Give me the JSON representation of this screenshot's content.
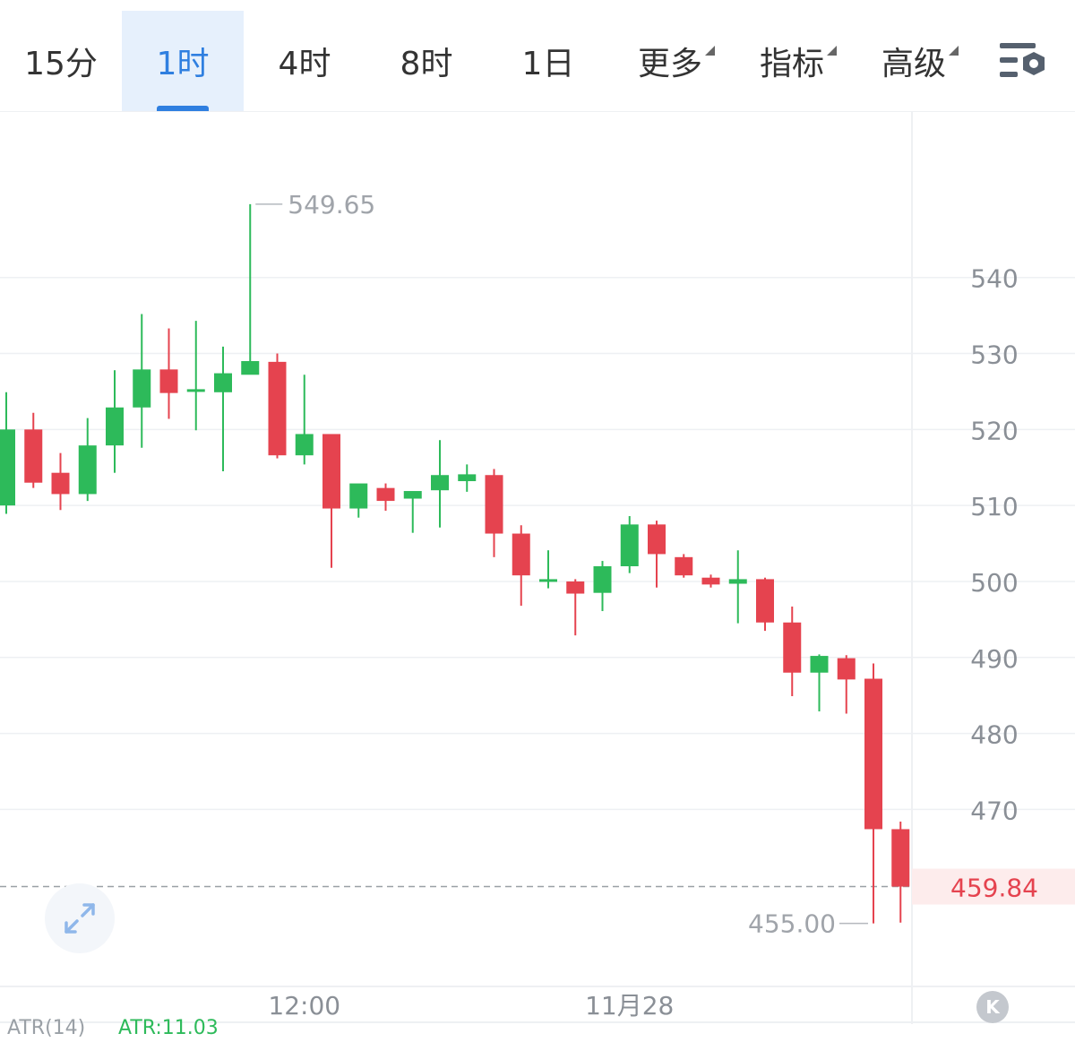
{
  "toolbar": {
    "tabs": [
      {
        "label": "15分",
        "active": false,
        "dropdown": false
      },
      {
        "label": "1时",
        "active": true,
        "dropdown": false
      },
      {
        "label": "4时",
        "active": false,
        "dropdown": false
      },
      {
        "label": "8时",
        "active": false,
        "dropdown": false
      },
      {
        "label": "1日",
        "active": false,
        "dropdown": false
      },
      {
        "label": "更多",
        "active": false,
        "dropdown": true
      },
      {
        "label": "指标",
        "active": false,
        "dropdown": true
      },
      {
        "label": "高级",
        "active": false,
        "dropdown": true
      }
    ],
    "settings_icon": "chart-settings-icon"
  },
  "colors": {
    "up": "#2dba5a",
    "down": "#e5434f",
    "accent": "#2f7fe0",
    "grid": "#eef0f3",
    "axis_text": "#8a8f96",
    "last_price": "#e5434f"
  },
  "chart_data": {
    "type": "candlestick",
    "interval": "1时",
    "x_tick_labels": [
      {
        "label": "12:00",
        "index": 11
      },
      {
        "label": "11月28",
        "index": 23
      }
    ],
    "y_ticks": [
      470,
      480,
      490,
      500,
      510,
      520,
      530,
      540
    ],
    "ylim": [
      446.7,
      561.9
    ],
    "high_annotation": {
      "label": "549.65",
      "value": 549.65,
      "index": 9
    },
    "low_annotation": {
      "label": "455.00",
      "value": 455.0,
      "index": 32
    },
    "last_price": {
      "label": "459.84",
      "value": 459.84
    },
    "candles": [
      {
        "open": 510.0,
        "high": 524.9,
        "low": 508.9,
        "close": 520.0
      },
      {
        "open": 520.0,
        "high": 522.2,
        "low": 512.3,
        "close": 513.0
      },
      {
        "open": 514.3,
        "high": 516.9,
        "low": 509.4,
        "close": 511.5
      },
      {
        "open": 511.5,
        "high": 521.5,
        "low": 510.6,
        "close": 517.9
      },
      {
        "open": 517.9,
        "high": 527.8,
        "low": 514.3,
        "close": 522.9
      },
      {
        "open": 522.9,
        "high": 535.2,
        "low": 517.6,
        "close": 527.9
      },
      {
        "open": 527.9,
        "high": 533.3,
        "low": 521.4,
        "close": 524.8
      },
      {
        "open": 525.0,
        "high": 534.3,
        "low": 519.9,
        "close": 525.3
      },
      {
        "open": 524.9,
        "high": 530.9,
        "low": 514.5,
        "close": 527.4
      },
      {
        "open": 527.2,
        "high": 549.65,
        "low": 527.4,
        "close": 529.0
      },
      {
        "open": 528.9,
        "high": 530.0,
        "low": 516.2,
        "close": 516.6
      },
      {
        "open": 516.6,
        "high": 527.2,
        "low": 515.4,
        "close": 519.4
      },
      {
        "open": 519.4,
        "high": 519.3,
        "low": 501.8,
        "close": 509.6
      },
      {
        "open": 509.6,
        "high": 512.7,
        "low": 508.4,
        "close": 512.9
      },
      {
        "open": 512.3,
        "high": 512.9,
        "low": 509.3,
        "close": 510.6
      },
      {
        "open": 510.9,
        "high": 511.6,
        "low": 506.4,
        "close": 511.9
      },
      {
        "open": 512.0,
        "high": 518.6,
        "low": 507.1,
        "close": 514.0
      },
      {
        "open": 513.2,
        "high": 515.4,
        "low": 511.8,
        "close": 514.1
      },
      {
        "open": 514.0,
        "high": 514.8,
        "low": 503.2,
        "close": 506.3
      },
      {
        "open": 506.3,
        "high": 507.4,
        "low": 496.8,
        "close": 500.8
      },
      {
        "open": 500.3,
        "high": 504.1,
        "low": 499.1,
        "close": 500.3
      },
      {
        "open": 500.0,
        "high": 500.3,
        "low": 492.9,
        "close": 498.4
      },
      {
        "open": 498.5,
        "high": 502.7,
        "low": 496.1,
        "close": 502.0
      },
      {
        "open": 502.0,
        "high": 508.6,
        "low": 501.1,
        "close": 507.5
      },
      {
        "open": 507.5,
        "high": 508.0,
        "low": 499.2,
        "close": 503.6
      },
      {
        "open": 503.2,
        "high": 503.6,
        "low": 500.5,
        "close": 500.8
      },
      {
        "open": 500.5,
        "high": 500.9,
        "low": 499.2,
        "close": 499.6
      },
      {
        "open": 499.7,
        "high": 504.1,
        "low": 494.5,
        "close": 500.3
      },
      {
        "open": 500.3,
        "high": 500.5,
        "low": 493.5,
        "close": 494.6
      },
      {
        "open": 494.6,
        "high": 496.7,
        "low": 484.9,
        "close": 488.0
      },
      {
        "open": 488.0,
        "high": 490.4,
        "low": 482.9,
        "close": 490.2
      },
      {
        "open": 489.9,
        "high": 490.3,
        "low": 482.6,
        "close": 487.1
      },
      {
        "open": 487.2,
        "high": 489.2,
        "low": 455.0,
        "close": 467.4
      },
      {
        "open": 467.4,
        "high": 468.4,
        "low": 455.1,
        "close": 459.84
      }
    ]
  },
  "indicator": {
    "name": "ATR(14)",
    "value": "ATR:11.03"
  }
}
